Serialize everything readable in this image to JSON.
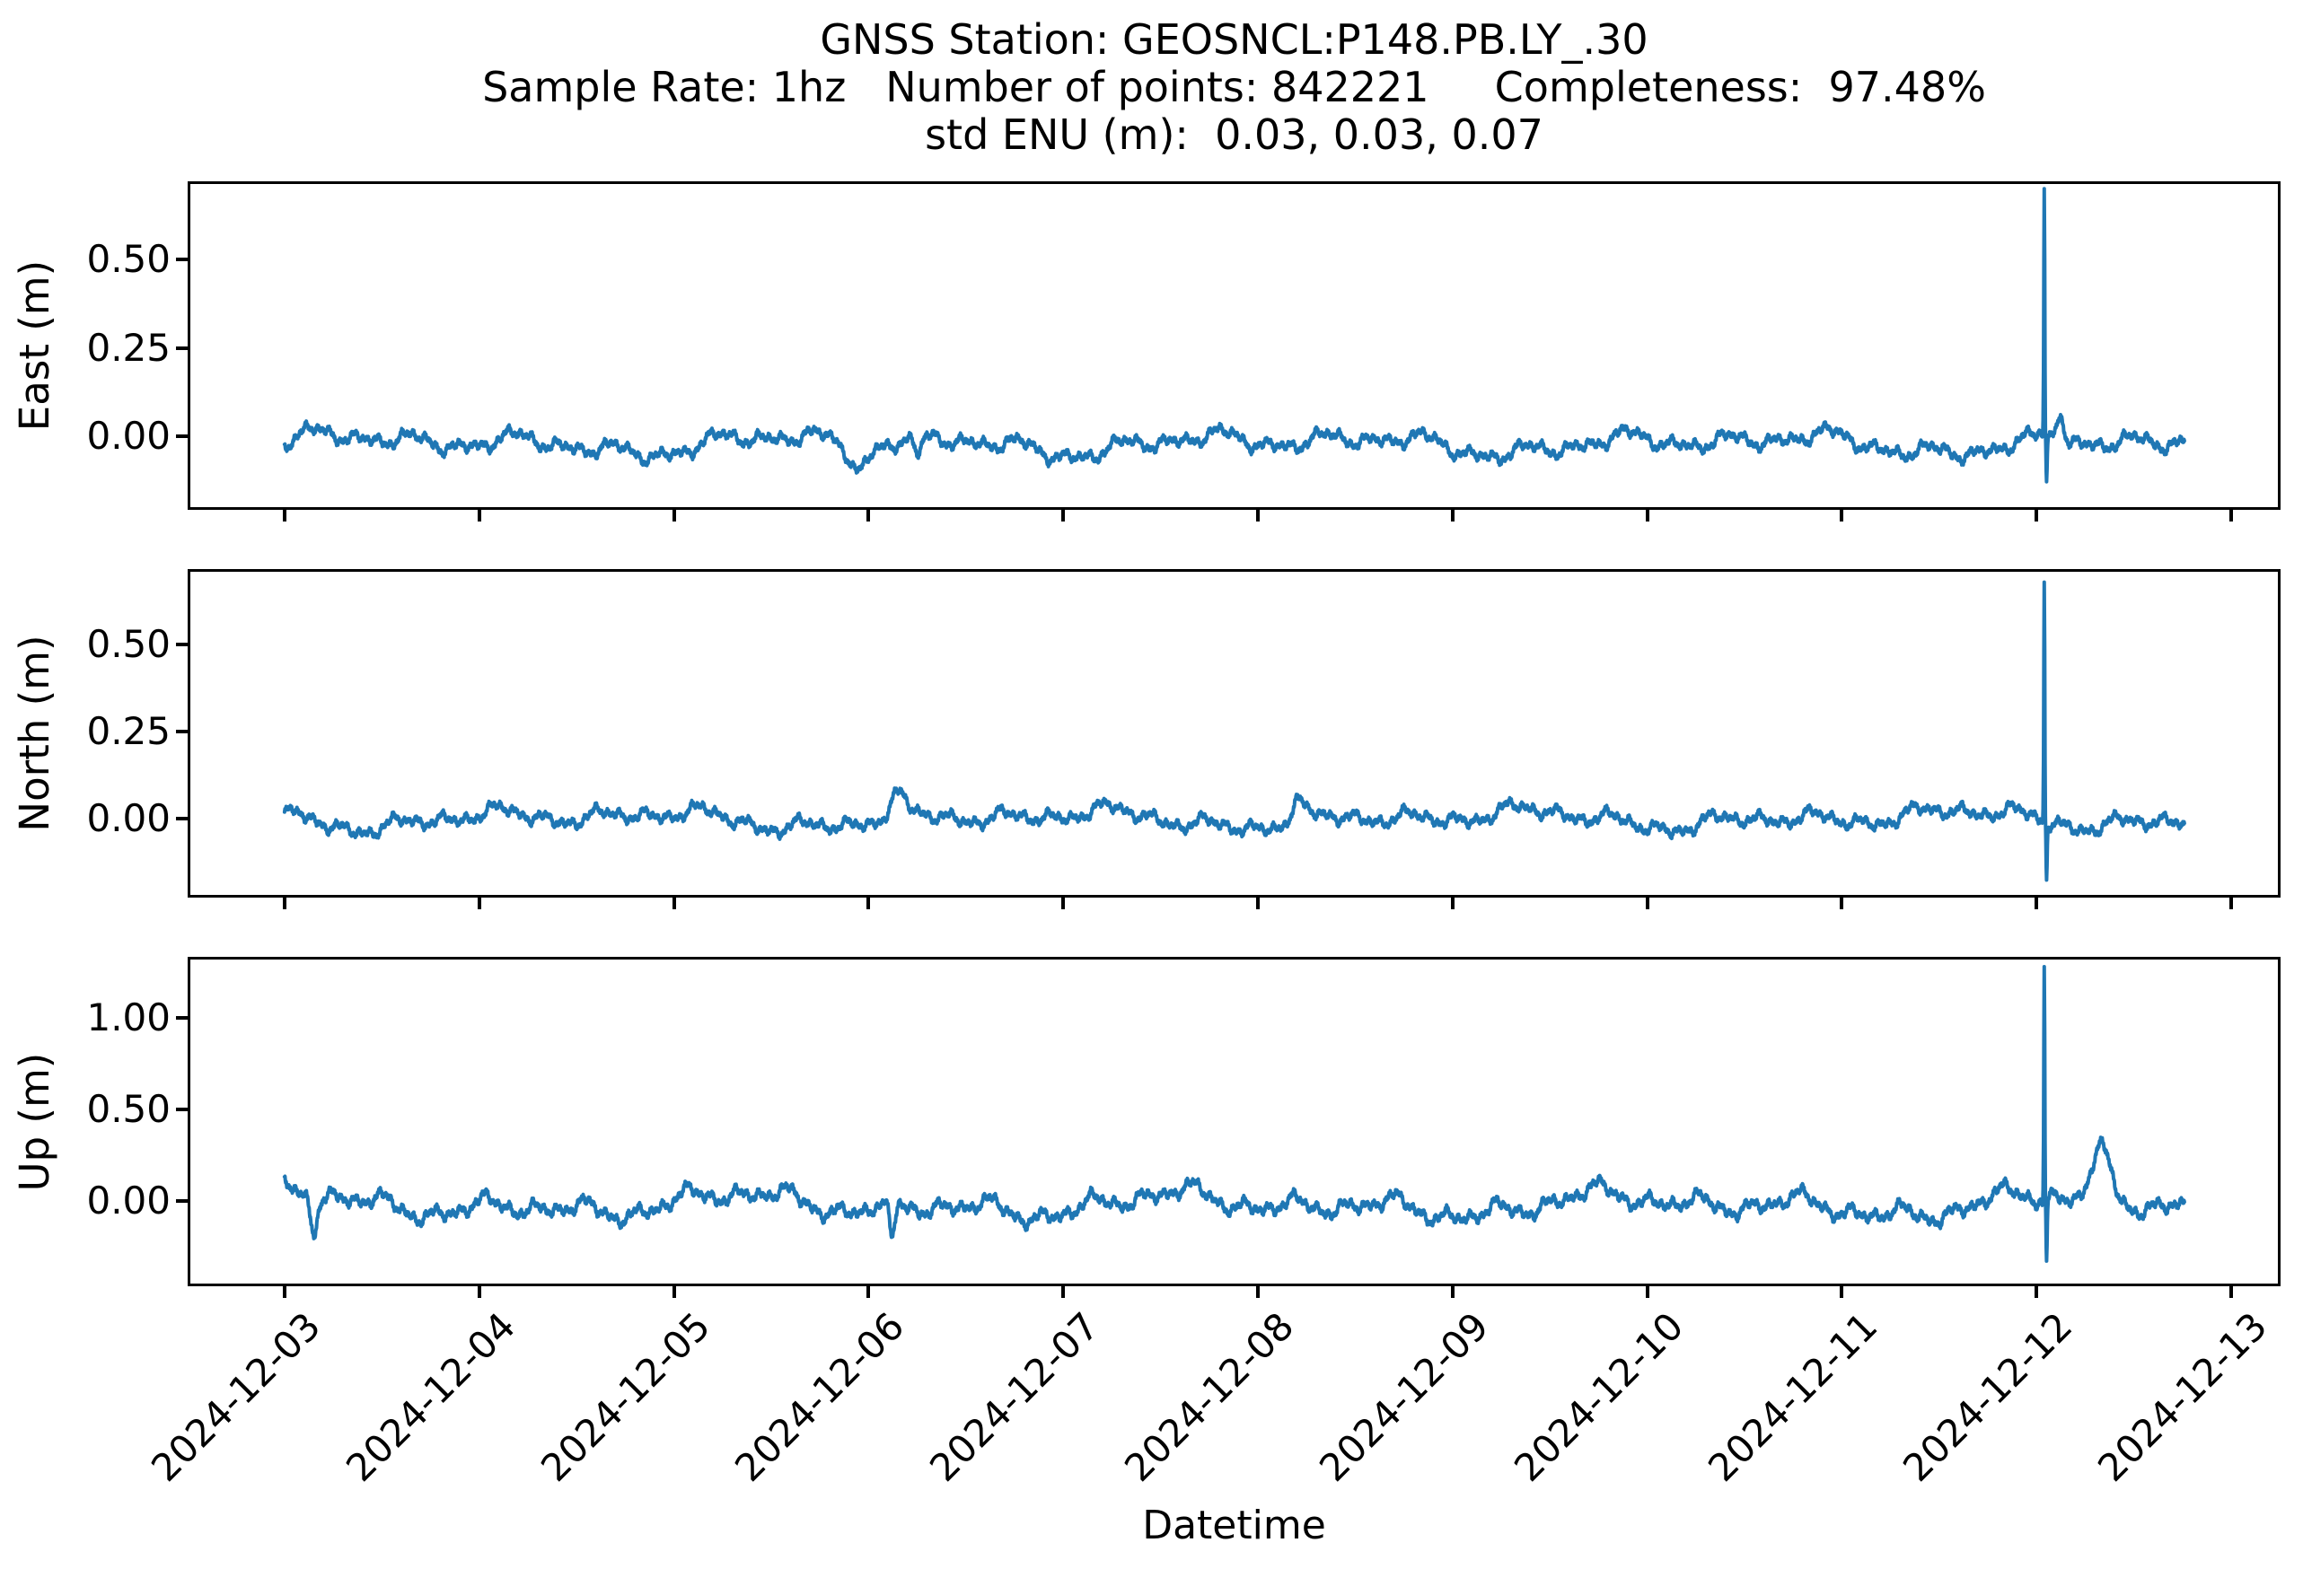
{
  "colors": {
    "line": "#1f77b4",
    "text": "#000000",
    "spine": "#000000",
    "background": "#ffffff"
  },
  "title": {
    "line1": "GNSS Station: GEOSNCL:P148.PB.LY_.30",
    "line2": "Sample Rate: 1hz   Number of points: 842221     Completeness:  97.48%",
    "line3": "std ENU (m):  0.03, 0.03, 0.07"
  },
  "xlabel": "Datetime",
  "chart_data": {
    "type": "line",
    "station": "GEOSNCL:P148.PB.LY_.30",
    "sample_rate": "1hz",
    "number_of_points": 842221,
    "completeness_pct": 97.48,
    "std_enu_m": [
      0.03,
      0.03,
      0.07
    ],
    "x_tick_labels": [
      "2024-12-03",
      "2024-12-04",
      "2024-12-05",
      "2024-12-06",
      "2024-12-07",
      "2024-12-08",
      "2024-12-09",
      "2024-12-10",
      "2024-12-11",
      "2024-12-12",
      "2024-12-13"
    ],
    "xlim_days": [
      -0.484,
      10.24
    ],
    "data_span_days": [
      0,
      9.76
    ],
    "sample_step_days": 0.002,
    "legend": "none",
    "grid": false,
    "series": [
      {
        "name": "East",
        "ylabel": "East (m)",
        "ylim": [
          -0.2,
          0.713
        ],
        "yticks": [
          {
            "v": 0.5,
            "label": "0.50"
          },
          {
            "v": 0.25,
            "label": "0.25"
          },
          {
            "v": 0.0,
            "label": "0.00"
          }
        ],
        "bias": -0.02,
        "seed": 7,
        "noise": {
          "periods": [
            2.3,
            1.1,
            0.52,
            0.26,
            0.13,
            0.061,
            0.029
          ],
          "amps": [
            0.016,
            0.015,
            0.014,
            0.012,
            0.009,
            0.007,
            0.005
          ],
          "jitter": [
            {
              "period": 0.004,
              "amp": 0.007
            },
            {
              "period": 0.0069,
              "amp": 0.005
            }
          ]
        },
        "events": [
          {
            "t": 9.04,
            "v": 0.69,
            "w": 0.0035
          },
          {
            "t": 9.052,
            "v": -0.12,
            "w": 0.004
          },
          {
            "t": 9.12,
            "v": 0.09,
            "w": 0.025
          },
          {
            "t": 2.95,
            "v": -0.07,
            "w": 0.06
          },
          {
            "t": 3.25,
            "v": -0.06,
            "w": 0.03
          }
        ]
      },
      {
        "name": "North",
        "ylabel": "North (m)",
        "ylim": [
          -0.219,
          0.709
        ],
        "yticks": [
          {
            "v": 0.5,
            "label": "0.50"
          },
          {
            "v": 0.25,
            "label": "0.25"
          },
          {
            "v": 0.0,
            "label": "0.00"
          }
        ],
        "bias": 0.0,
        "seed": 13,
        "noise": {
          "periods": [
            2.3,
            1.1,
            0.52,
            0.26,
            0.13,
            0.061,
            0.029
          ],
          "amps": [
            0.014,
            0.014,
            0.013,
            0.011,
            0.009,
            0.007,
            0.005
          ],
          "jitter": [
            {
              "period": 0.004,
              "amp": 0.007
            },
            {
              "period": 0.0069,
              "amp": 0.005
            }
          ]
        },
        "events": [
          {
            "t": 9.04,
            "v": 0.69,
            "w": 0.0035
          },
          {
            "t": 9.052,
            "v": -0.16,
            "w": 0.004
          },
          {
            "t": 3.15,
            "v": 0.05,
            "w": 0.05
          },
          {
            "t": 5.2,
            "v": 0.05,
            "w": 0.04
          }
        ]
      },
      {
        "name": "Up",
        "ylabel": "Up (m)",
        "ylim": [
          -0.449,
          1.317
        ],
        "yticks": [
          {
            "v": 1.0,
            "label": "1.00"
          },
          {
            "v": 0.5,
            "label": "0.50"
          },
          {
            "v": 0.0,
            "label": "0.00"
          }
        ],
        "bias": -0.02,
        "seed": 29,
        "noise": {
          "periods": [
            2.3,
            1.1,
            0.52,
            0.26,
            0.13,
            0.061,
            0.029
          ],
          "amps": [
            0.037,
            0.034,
            0.031,
            0.027,
            0.02,
            0.015,
            0.011
          ],
          "jitter": [
            {
              "period": 0.004,
              "amp": 0.015
            },
            {
              "period": 0.0069,
              "amp": 0.01
            }
          ]
        },
        "events": [
          {
            "t": 9.04,
            "v": 1.27,
            "w": 0.0035
          },
          {
            "t": 9.052,
            "v": -0.32,
            "w": 0.004
          },
          {
            "t": 9.33,
            "v": 0.26,
            "w": 0.07
          },
          {
            "t": 0.15,
            "v": -0.18,
            "w": 0.025
          },
          {
            "t": 3.12,
            "v": -0.22,
            "w": 0.02
          }
        ]
      }
    ]
  }
}
